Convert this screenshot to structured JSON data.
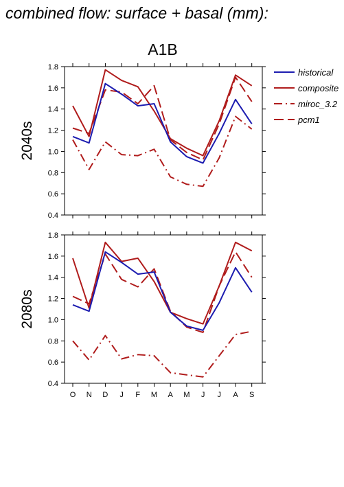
{
  "title": "combined flow: surface + basal (mm):",
  "scenario": "A1B",
  "chart_data": {
    "type": "line",
    "categories": [
      "O",
      "N",
      "D",
      "J",
      "F",
      "M",
      "A",
      "M",
      "J",
      "J",
      "A",
      "S"
    ],
    "ylim": [
      0.4,
      1.8
    ],
    "yticks": [
      "0.4",
      "0.6",
      "0.8",
      "1.0",
      "1.2",
      "1.4",
      "1.6",
      "1.8"
    ],
    "grid": false,
    "legend_position": "right",
    "legend": [
      {
        "name": "historical",
        "color": "#1c1cb0",
        "dash": "solid"
      },
      {
        "name": "composite",
        "color": "#b01c1c",
        "dash": "solid"
      },
      {
        "name": "miroc_3.2",
        "color": "#b01c1c",
        "dash": "dashdot"
      },
      {
        "name": "pcm1",
        "color": "#b01c1c",
        "dash": "dashed"
      }
    ],
    "panels": [
      {
        "label": "2040s",
        "series": [
          {
            "name": "historical",
            "values": [
              1.14,
              1.08,
              1.64,
              1.54,
              1.43,
              1.45,
              1.09,
              0.95,
              0.89,
              1.17,
              1.49,
              1.26
            ]
          },
          {
            "name": "composite",
            "values": [
              1.43,
              1.14,
              1.77,
              1.67,
              1.61,
              1.38,
              1.12,
              1.03,
              0.96,
              1.29,
              1.72,
              1.62
            ]
          },
          {
            "name": "miroc_3.2",
            "values": [
              1.11,
              0.83,
              1.09,
              0.97,
              0.96,
              1.02,
              0.76,
              0.69,
              0.67,
              0.94,
              1.33,
              1.21
            ]
          },
          {
            "name": "pcm1",
            "values": [
              1.22,
              1.17,
              1.58,
              1.56,
              1.45,
              1.62,
              1.11,
              0.99,
              0.92,
              1.26,
              1.7,
              1.47
            ]
          }
        ]
      },
      {
        "label": "2080s",
        "series": [
          {
            "name": "historical",
            "values": [
              1.14,
              1.08,
              1.64,
              1.54,
              1.43,
              1.45,
              1.07,
              0.94,
              0.9,
              1.16,
              1.49,
              1.26
            ]
          },
          {
            "name": "composite",
            "values": [
              1.58,
              1.11,
              1.73,
              1.55,
              1.58,
              1.36,
              1.07,
              1.01,
              0.96,
              1.32,
              1.73,
              1.65
            ]
          },
          {
            "name": "miroc_3.2",
            "values": [
              0.8,
              0.62,
              0.85,
              0.63,
              0.67,
              0.66,
              0.5,
              0.48,
              0.46,
              0.66,
              0.86,
              0.89
            ]
          },
          {
            "name": "pcm1",
            "values": [
              1.22,
              1.15,
              1.62,
              1.38,
              1.31,
              1.48,
              1.08,
              0.93,
              0.88,
              1.32,
              1.64,
              1.4
            ]
          }
        ]
      }
    ]
  }
}
